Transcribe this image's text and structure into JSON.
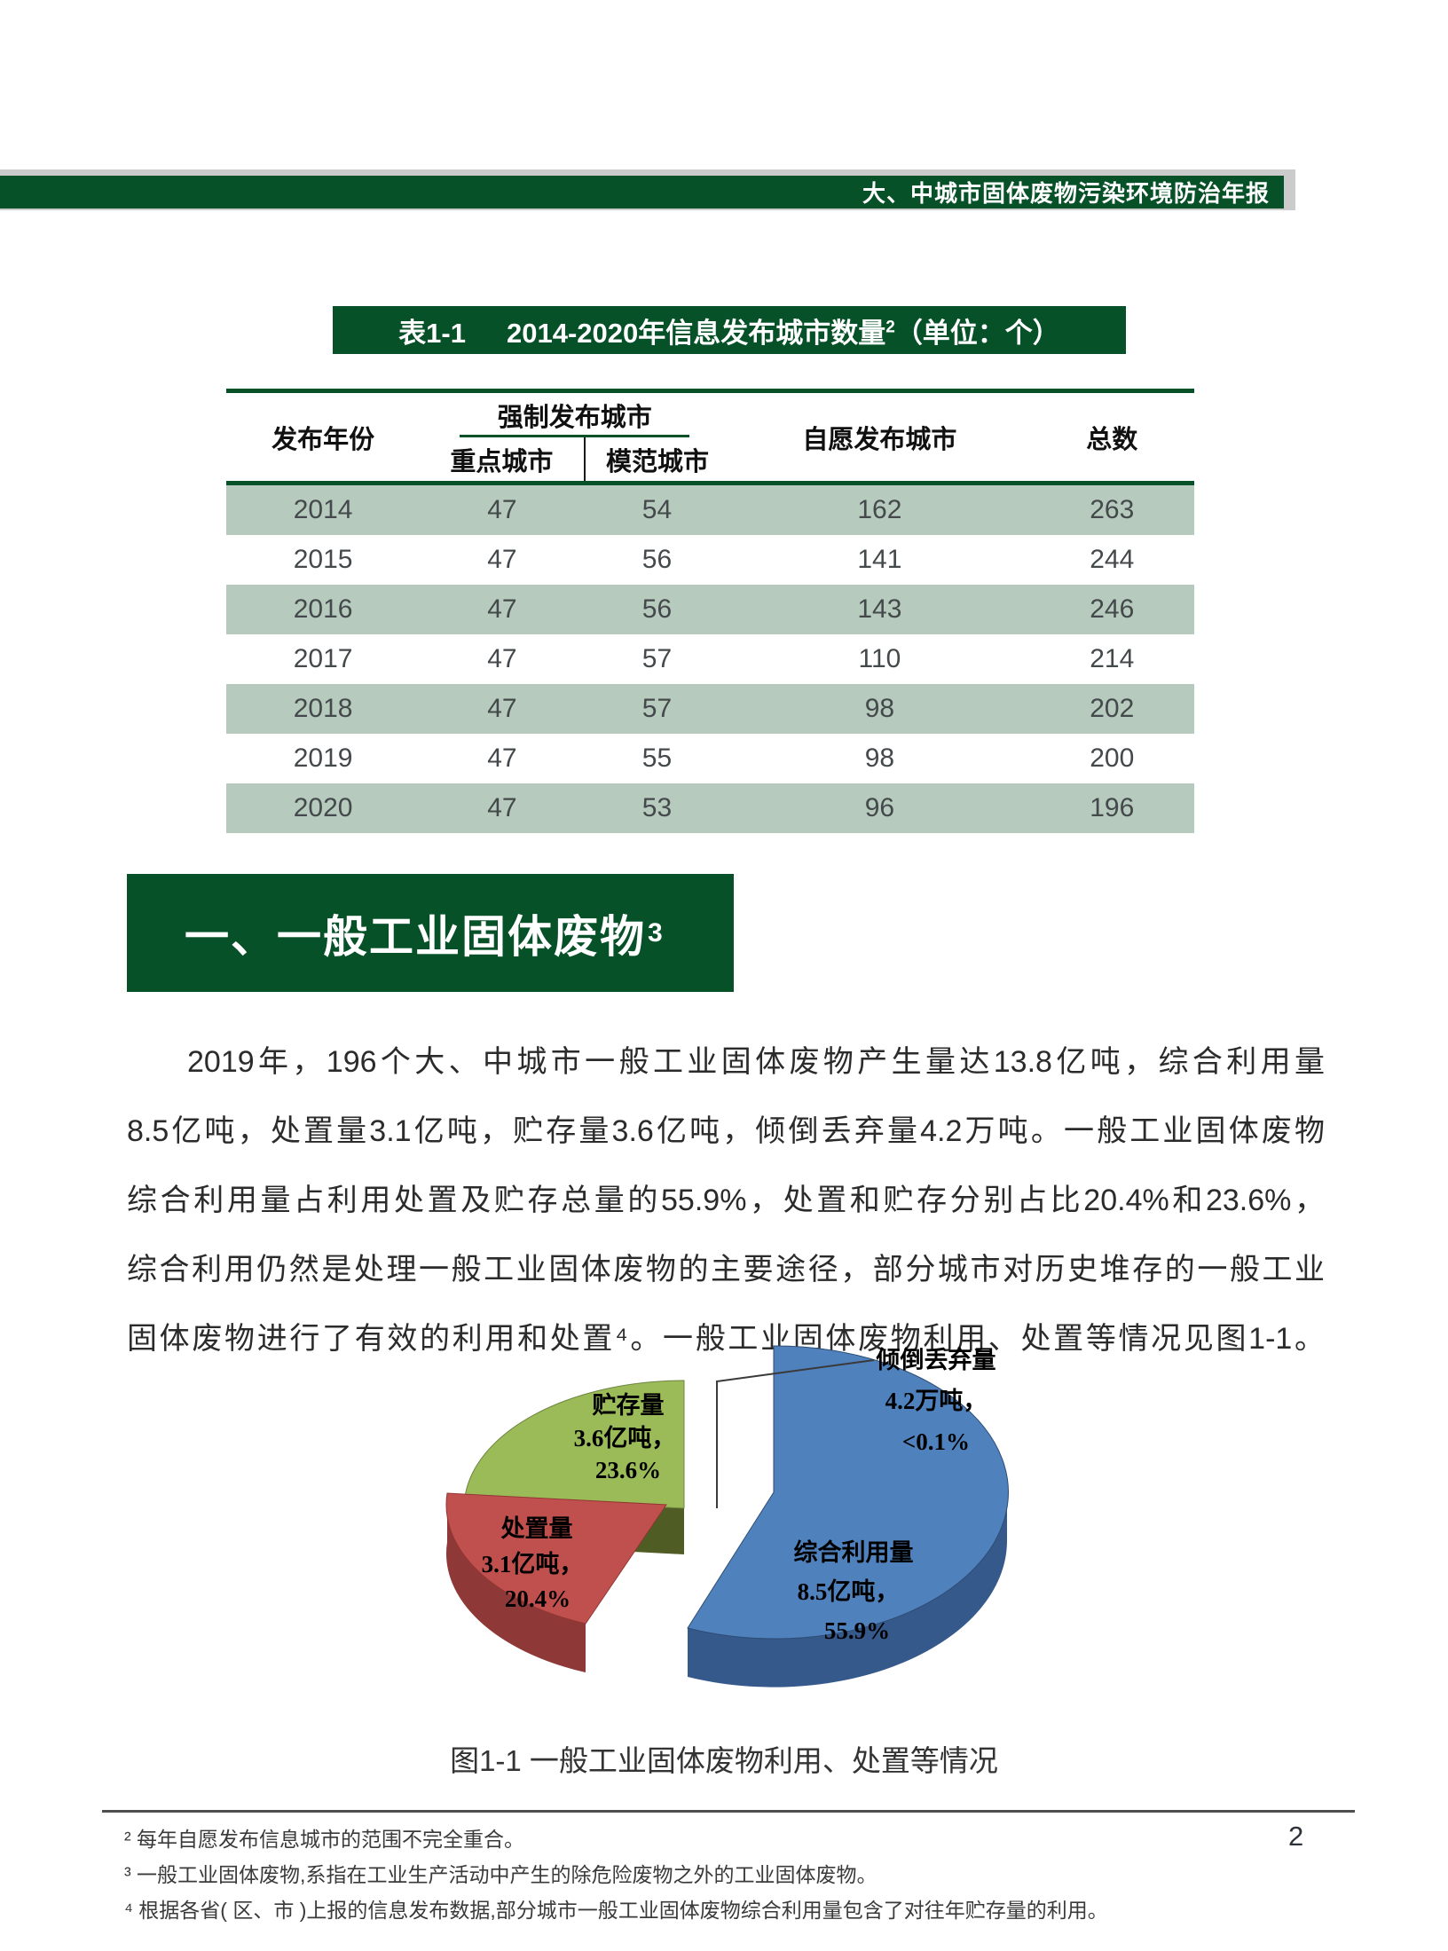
{
  "header": {
    "title": "大、中城市固体废物污染环境防治年报"
  },
  "table": {
    "caption": {
      "prefix": "表1-1",
      "title_pre": "2014-2020年信息发布城市数量",
      "sup": "2",
      "title_post": "（单位：个）"
    },
    "col_year": "发布年份",
    "col_mandatory": "强制发布城市",
    "col_key": "重点城市",
    "col_model": "模范城市",
    "col_voluntary": "自愿发布城市",
    "col_total": "总数",
    "rows": [
      [
        "2014",
        "47",
        "54",
        "162",
        "263"
      ],
      [
        "2015",
        "47",
        "56",
        "141",
        "244"
      ],
      [
        "2016",
        "47",
        "56",
        "143",
        "246"
      ],
      [
        "2017",
        "47",
        "57",
        "110",
        "214"
      ],
      [
        "2018",
        "47",
        "57",
        "98",
        "202"
      ],
      [
        "2019",
        "47",
        "55",
        "98",
        "200"
      ],
      [
        "2020",
        "47",
        "53",
        "96",
        "196"
      ]
    ]
  },
  "section": {
    "heading_text": "一、一般工业固体废物",
    "heading_sup": "3"
  },
  "paragraph": {
    "lines": [
      "2019年，196个大、中城市一般工业固体废物产生量达13.8亿吨，综合利用量",
      "8.5亿吨，处置量3.1亿吨，贮存量3.6亿吨，倾倒丢弃量4.2万吨。一般工业固体废物",
      "综合利用量占利用处置及贮存总量的55.9%，处置和贮存分别占比20.4%和23.6%，",
      "综合利用仍然是处理一般工业固体废物的主要途径，部分城市对历史堆存的一般工业",
      "固体废物进行了有效的利用和处置⁴。一般工业固体废物利用、处置等情况见图1-1。"
    ]
  },
  "chart_data": {
    "type": "pie",
    "unit": "亿吨",
    "legend_position": "none",
    "slices": [
      {
        "label": "综合利用量",
        "value": 8.5,
        "value_label": "8.5亿吨，",
        "percent": 55.9,
        "percent_label": "55.9%",
        "color": "#4f81bd",
        "side_color": "#36598c"
      },
      {
        "label": "贮存量",
        "value": 3.6,
        "value_label": "3.6亿吨，",
        "percent": 23.6,
        "percent_label": "23.6%",
        "color": "#9bbb59",
        "side_color": "#4f5c23"
      },
      {
        "label": "处置量",
        "value": 3.1,
        "value_label": "3.1亿吨，",
        "percent": 20.4,
        "percent_label": "20.4%",
        "color": "#c0504d",
        "side_color": "#8e3937"
      },
      {
        "label": "倾倒丢弃量",
        "value": 0.00042,
        "value_label": "4.2万吨，",
        "percent": 0.1,
        "percent_label": "<0.1%",
        "color": "#ffffff",
        "side_color": "#ffffff"
      }
    ]
  },
  "figure": {
    "caption": "图1-1  一般工业固体废物利用、处置等情况"
  },
  "footnotes": {
    "fn2": "² 每年自愿发布信息城市的范围不完全重合。",
    "fn3": "³ 一般工业固体废物,系指在工业生产活动中产生的除危险废物之外的工业固体废物。",
    "fn4": "⁴ 根据各省( 区、市 )上报的信息发布数据,部分城市一般工业固体废物综合利用量包含了对往年贮存量的利用。"
  },
  "page": {
    "number": "2"
  },
  "colors": {
    "green": "#065128",
    "row-shade": "#b6cabe",
    "gray-bar": "#cbcbcb",
    "text-dark": "#2b2b2b",
    "table-text": "#44494b"
  }
}
